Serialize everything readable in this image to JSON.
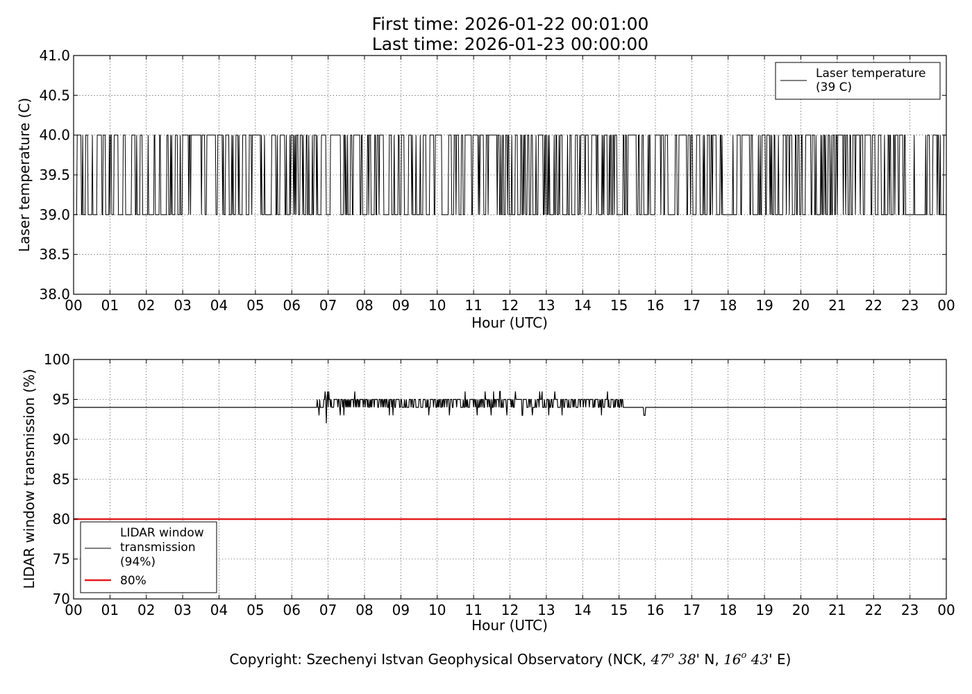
{
  "header": {
    "title_line1": "First time: 2026-01-22 00:01:00",
    "title_line2": "Last time: 2026-01-23 00:00:00"
  },
  "footer": {
    "copyright_prefix": "Copyright: Szechenyi Istvan Geophysical Observatory (NCK, ",
    "lat_deg": "47",
    "deg_symbol": "o",
    "lat_min": "38",
    "lat_suffix": "' N, ",
    "lon_deg": "16",
    "lon_min": "43",
    "lon_suffix": "' E)"
  },
  "chart_data": [
    {
      "type": "line",
      "xlabel": "Hour (UTC)",
      "ylabel": "Laser temperature (C)",
      "ylim": [
        38.0,
        41.0
      ],
      "xlim_hours": [
        0,
        24
      ],
      "yticks": [
        "38.0",
        "38.5",
        "39.0",
        "39.5",
        "40.0",
        "40.5",
        "41.0"
      ],
      "xticks": [
        "00",
        "01",
        "02",
        "03",
        "04",
        "05",
        "06",
        "07",
        "08",
        "09",
        "10",
        "11",
        "12",
        "13",
        "14",
        "15",
        "16",
        "17",
        "18",
        "19",
        "20",
        "21",
        "22",
        "23",
        "00"
      ],
      "grid": true,
      "legend_position": "top-right",
      "series": [
        {
          "name": "Laser temperature\n(39 C)",
          "color": "#000000",
          "description_values": [
            39.0,
            40.0
          ],
          "pattern": "switches rapidly between 39.0 and 40.0 over the full day"
        }
      ]
    },
    {
      "type": "line",
      "xlabel": "Hour (UTC)",
      "ylabel": "LIDAR window transmission (%)",
      "ylim": [
        70,
        100
      ],
      "xlim_hours": [
        0,
        24
      ],
      "yticks": [
        "70",
        "75",
        "80",
        "85",
        "90",
        "95",
        "100"
      ],
      "xticks": [
        "00",
        "01",
        "02",
        "03",
        "04",
        "05",
        "06",
        "07",
        "08",
        "09",
        "10",
        "11",
        "12",
        "13",
        "14",
        "15",
        "16",
        "17",
        "18",
        "19",
        "20",
        "21",
        "22",
        "23",
        "00"
      ],
      "grid": true,
      "legend_position": "bottom-left",
      "series": [
        {
          "name": "LIDAR window\ntransmission\n(94%)",
          "color": "#000000",
          "baseline": 94,
          "fluctuation_range_hours": [
            6.7,
            15.1
          ],
          "fluctuation_values": [
            92,
            93,
            94,
            95,
            96
          ]
        },
        {
          "name": "80%",
          "color": "#e41a1c",
          "value": 80
        }
      ]
    }
  ]
}
